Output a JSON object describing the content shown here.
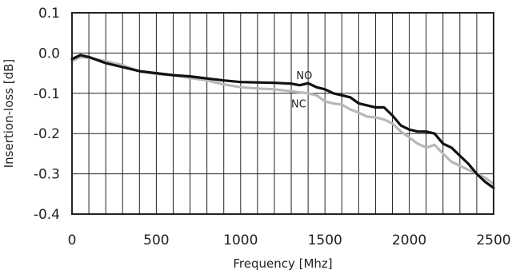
{
  "chart_data": {
    "type": "line",
    "title": "",
    "xlabel": "Frequency [Mhz]",
    "ylabel": "Insertion-loss [dB]",
    "xlim": [
      0,
      2500
    ],
    "ylim": [
      -0.4,
      0.1
    ],
    "x_ticks": [
      "0",
      "500",
      "1000",
      "1500",
      "2000",
      "2500"
    ],
    "y_ticks": [
      "0.1",
      "0.0",
      "-0.1",
      "-0.2",
      "-0.3",
      "-0.4"
    ],
    "grid": true,
    "legend": "inline labels",
    "series": [
      {
        "name": "NO",
        "color": "#111111",
        "points": [
          [
            0,
            -0.015
          ],
          [
            50,
            -0.005
          ],
          [
            100,
            -0.01
          ],
          [
            200,
            -0.025
          ],
          [
            300,
            -0.035
          ],
          [
            400,
            -0.045
          ],
          [
            500,
            -0.05
          ],
          [
            600,
            -0.055
          ],
          [
            700,
            -0.058
          ],
          [
            800,
            -0.063
          ],
          [
            900,
            -0.068
          ],
          [
            1000,
            -0.072
          ],
          [
            1100,
            -0.073
          ],
          [
            1200,
            -0.074
          ],
          [
            1300,
            -0.076
          ],
          [
            1350,
            -0.08
          ],
          [
            1400,
            -0.075
          ],
          [
            1450,
            -0.085
          ],
          [
            1500,
            -0.09
          ],
          [
            1550,
            -0.1
          ],
          [
            1600,
            -0.105
          ],
          [
            1650,
            -0.11
          ],
          [
            1700,
            -0.125
          ],
          [
            1750,
            -0.13
          ],
          [
            1800,
            -0.135
          ],
          [
            1850,
            -0.135
          ],
          [
            1900,
            -0.155
          ],
          [
            1950,
            -0.18
          ],
          [
            2000,
            -0.19
          ],
          [
            2050,
            -0.195
          ],
          [
            2100,
            -0.195
          ],
          [
            2150,
            -0.2
          ],
          [
            2200,
            -0.225
          ],
          [
            2250,
            -0.235
          ],
          [
            2300,
            -0.255
          ],
          [
            2350,
            -0.275
          ],
          [
            2400,
            -0.3
          ],
          [
            2450,
            -0.32
          ],
          [
            2500,
            -0.335
          ]
        ]
      },
      {
        "name": "NC",
        "color": "#b8b8b8",
        "points": [
          [
            0,
            -0.02
          ],
          [
            50,
            -0.01
          ],
          [
            100,
            -0.012
          ],
          [
            200,
            -0.02
          ],
          [
            300,
            -0.03
          ],
          [
            400,
            -0.045
          ],
          [
            500,
            -0.052
          ],
          [
            600,
            -0.055
          ],
          [
            700,
            -0.062
          ],
          [
            800,
            -0.068
          ],
          [
            900,
            -0.078
          ],
          [
            1000,
            -0.085
          ],
          [
            1100,
            -0.088
          ],
          [
            1200,
            -0.09
          ],
          [
            1300,
            -0.095
          ],
          [
            1400,
            -0.1
          ],
          [
            1450,
            -0.105
          ],
          [
            1500,
            -0.12
          ],
          [
            1550,
            -0.125
          ],
          [
            1600,
            -0.128
          ],
          [
            1650,
            -0.14
          ],
          [
            1700,
            -0.148
          ],
          [
            1750,
            -0.158
          ],
          [
            1800,
            -0.16
          ],
          [
            1850,
            -0.165
          ],
          [
            1900,
            -0.175
          ],
          [
            1950,
            -0.195
          ],
          [
            2000,
            -0.21
          ],
          [
            2050,
            -0.225
          ],
          [
            2100,
            -0.235
          ],
          [
            2150,
            -0.228
          ],
          [
            2200,
            -0.25
          ],
          [
            2250,
            -0.27
          ],
          [
            2300,
            -0.28
          ],
          [
            2350,
            -0.29
          ],
          [
            2400,
            -0.3
          ],
          [
            2450,
            -0.31
          ],
          [
            2500,
            -0.325
          ]
        ]
      }
    ]
  }
}
